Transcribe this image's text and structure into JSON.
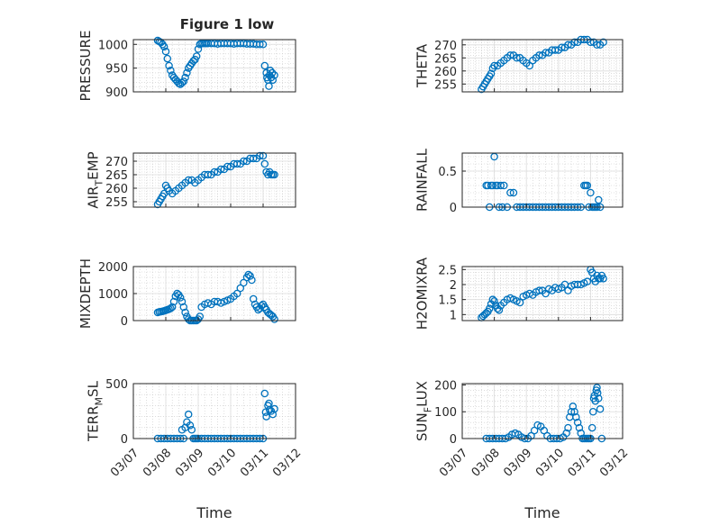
{
  "figure": {
    "title": "Figure 1 low"
  },
  "colors": {
    "marker": "#0072BD",
    "axis": "#262626",
    "grid": "#c8c8c8",
    "background": "#ffffff"
  },
  "chart_data": [
    {
      "type": "scatter",
      "marker": "circle-open",
      "grid": true,
      "title": "Figure 1 low",
      "ylabel": "PRESSURE",
      "xlim": [
        "03/07",
        "03/12"
      ],
      "ylim": [
        900,
        1010
      ],
      "yticks": [
        900,
        950,
        1000
      ],
      "xtick_labels_shown": false,
      "series": [
        {
          "x_days": [
            0.75,
            0.8,
            0.85,
            0.9,
            0.95,
            1.0,
            1.05,
            1.1,
            1.15,
            1.2,
            1.25,
            1.3,
            1.35,
            1.4,
            1.45,
            1.5,
            1.55,
            1.6,
            1.65,
            1.7,
            1.75,
            1.8,
            1.85,
            1.9,
            1.95,
            2.0,
            2.05,
            2.1,
            2.15,
            2.2,
            2.25,
            2.3,
            2.4,
            2.5,
            2.6,
            2.7,
            2.8,
            2.9,
            3.0,
            3.1,
            3.2,
            3.3,
            3.4,
            3.5,
            3.6,
            3.7,
            3.8,
            3.9,
            4.0,
            4.05,
            4.1,
            4.12,
            4.15,
            4.18,
            4.2,
            4.22,
            4.25,
            4.28,
            4.3,
            4.35
          ],
          "y": [
            1008,
            1006,
            1004,
            1000,
            995,
            985,
            970,
            955,
            945,
            935,
            930,
            926,
            922,
            918,
            916,
            919,
            922,
            930,
            940,
            950,
            955,
            960,
            965,
            968,
            975,
            990,
            1000,
            1002,
            1002,
            1002,
            1002,
            1002,
            1002,
            1002,
            1001,
            1002,
            1002,
            1002,
            1002,
            1001,
            1002,
            1002,
            1002,
            1001,
            1001,
            1001,
            1000,
            1000,
            1000,
            955,
            940,
            930,
            925,
            912,
            935,
            945,
            930,
            940,
            925,
            935
          ]
        }
      ]
    },
    {
      "type": "scatter",
      "marker": "circle-open",
      "grid": true,
      "ylabel": "THETA",
      "xlim": [
        "03/07",
        "03/12"
      ],
      "ylim": [
        252,
        272
      ],
      "yticks": [
        255,
        260,
        265,
        270
      ],
      "xtick_labels_shown": false,
      "series": [
        {
          "x_days": [
            0.6,
            0.65,
            0.7,
            0.75,
            0.8,
            0.85,
            0.9,
            0.95,
            1.0,
            1.1,
            1.2,
            1.3,
            1.4,
            1.5,
            1.6,
            1.7,
            1.8,
            1.9,
            2.0,
            2.1,
            2.2,
            2.3,
            2.4,
            2.5,
            2.6,
            2.7,
            2.8,
            2.9,
            3.0,
            3.1,
            3.2,
            3.3,
            3.4,
            3.5,
            3.6,
            3.7,
            3.8,
            3.9,
            4.0,
            4.1,
            4.2,
            4.3,
            4.4
          ],
          "y": [
            253,
            254,
            255,
            256,
            257,
            258,
            259,
            261,
            262,
            262,
            263,
            264,
            265,
            266,
            266,
            265,
            265,
            264,
            263,
            262,
            264,
            265,
            266,
            266,
            267,
            267,
            268,
            268,
            268,
            269,
            269,
            270,
            270,
            271,
            271,
            272,
            272,
            272,
            271,
            271,
            270,
            270,
            271
          ]
        }
      ]
    },
    {
      "type": "scatter",
      "marker": "circle-open",
      "grid": true,
      "ylabel": "AIR_TEMP",
      "ylabel_display": [
        "AIR",
        "T",
        "EMP"
      ],
      "xlim": [
        "03/07",
        "03/12"
      ],
      "ylim": [
        253,
        273
      ],
      "yticks": [
        255,
        260,
        265,
        270
      ],
      "xtick_labels_shown": false,
      "series": [
        {
          "x_days": [
            0.75,
            0.8,
            0.85,
            0.9,
            0.95,
            1.0,
            1.05,
            1.1,
            1.2,
            1.3,
            1.4,
            1.5,
            1.6,
            1.7,
            1.8,
            1.9,
            2.0,
            2.1,
            2.2,
            2.3,
            2.4,
            2.5,
            2.6,
            2.7,
            2.8,
            2.9,
            3.0,
            3.1,
            3.2,
            3.3,
            3.4,
            3.5,
            3.6,
            3.7,
            3.8,
            3.9,
            4.0,
            4.05,
            4.1,
            4.15,
            4.2,
            4.25,
            4.3,
            4.35
          ],
          "y": [
            254,
            255,
            256,
            257,
            258,
            261,
            260,
            259,
            258,
            259,
            260,
            261,
            262,
            263,
            263,
            262,
            263,
            264,
            265,
            265,
            265,
            266,
            266,
            267,
            267,
            268,
            268,
            269,
            269,
            269,
            270,
            270,
            271,
            271,
            271,
            272,
            272,
            269,
            266,
            265,
            266,
            265,
            265,
            265
          ]
        }
      ]
    },
    {
      "type": "scatter",
      "marker": "circle-open",
      "grid": true,
      "ylabel": "RAINFALL",
      "xlim": [
        "03/07",
        "03/12"
      ],
      "ylim": [
        0,
        0.75
      ],
      "yticks": [
        0,
        0.5
      ],
      "xtick_labels_shown": false,
      "series": [
        {
          "x_days": [
            0.75,
            0.8,
            0.85,
            0.9,
            0.95,
            1.0,
            1.05,
            1.1,
            1.15,
            1.2,
            1.25,
            1.3,
            1.4,
            1.5,
            1.6,
            1.7,
            1.8,
            1.9,
            2.0,
            2.1,
            2.2,
            2.3,
            2.4,
            2.5,
            2.6,
            2.7,
            2.8,
            2.9,
            3.0,
            3.1,
            3.2,
            3.3,
            3.4,
            3.5,
            3.6,
            3.7,
            3.8,
            3.85,
            3.9,
            3.95,
            4.0,
            4.05,
            4.1,
            4.15,
            4.2,
            4.25,
            4.3
          ],
          "y": [
            0.3,
            0.3,
            0,
            0.3,
            0.3,
            0.7,
            0.3,
            0.3,
            0,
            0.3,
            0,
            0.3,
            0,
            0.2,
            0.2,
            0,
            0,
            0,
            0,
            0,
            0,
            0,
            0,
            0,
            0,
            0,
            0,
            0,
            0,
            0,
            0,
            0,
            0,
            0,
            0,
            0,
            0.3,
            0.3,
            0.3,
            0,
            0.2,
            0,
            0,
            0,
            0,
            0.1,
            0
          ]
        }
      ]
    },
    {
      "type": "scatter",
      "marker": "circle-open",
      "grid": true,
      "ylabel": "MIXDEPTH",
      "xlim": [
        "03/07",
        "03/12"
      ],
      "ylim": [
        0,
        2000
      ],
      "yticks": [
        0,
        1000,
        2000
      ],
      "xtick_labels_shown": false,
      "series": [
        {
          "x_days": [
            0.75,
            0.8,
            0.85,
            0.9,
            0.95,
            1.0,
            1.05,
            1.1,
            1.15,
            1.2,
            1.25,
            1.3,
            1.35,
            1.4,
            1.45,
            1.5,
            1.55,
            1.6,
            1.65,
            1.7,
            1.75,
            1.8,
            1.85,
            1.9,
            1.95,
            2.0,
            2.05,
            2.1,
            2.2,
            2.3,
            2.4,
            2.5,
            2.6,
            2.7,
            2.8,
            2.9,
            3.0,
            3.1,
            3.2,
            3.3,
            3.4,
            3.5,
            3.55,
            3.6,
            3.65,
            3.7,
            3.75,
            3.8,
            3.85,
            3.9,
            3.95,
            4.0,
            4.05,
            4.1,
            4.15,
            4.2,
            4.25,
            4.3,
            4.35
          ],
          "y": [
            300,
            320,
            330,
            340,
            360,
            380,
            400,
            420,
            450,
            500,
            700,
            900,
            1000,
            950,
            850,
            700,
            500,
            300,
            150,
            50,
            0,
            0,
            0,
            0,
            0,
            50,
            150,
            500,
            600,
            650,
            600,
            700,
            700,
            650,
            700,
            750,
            800,
            900,
            1000,
            1200,
            1400,
            1600,
            1700,
            1650,
            1500,
            800,
            600,
            500,
            400,
            450,
            550,
            600,
            500,
            400,
            300,
            250,
            200,
            150,
            50
          ]
        }
      ]
    },
    {
      "type": "scatter",
      "marker": "circle-open",
      "grid": true,
      "ylabel": "H2OMIXRA",
      "xlim": [
        "03/07",
        "03/12"
      ],
      "ylim": [
        0.8,
        2.6
      ],
      "yticks": [
        1,
        1.5,
        2,
        2.5
      ],
      "xtick_labels_shown": false,
      "series": [
        {
          "x_days": [
            0.6,
            0.65,
            0.7,
            0.75,
            0.8,
            0.85,
            0.9,
            0.95,
            1.0,
            1.05,
            1.1,
            1.15,
            1.2,
            1.3,
            1.4,
            1.5,
            1.6,
            1.7,
            1.8,
            1.9,
            2.0,
            2.1,
            2.2,
            2.3,
            2.4,
            2.5,
            2.6,
            2.7,
            2.8,
            2.9,
            3.0,
            3.1,
            3.2,
            3.3,
            3.4,
            3.5,
            3.6,
            3.7,
            3.8,
            3.9,
            4.0,
            4.05,
            4.1,
            4.15,
            4.2,
            4.25,
            4.3,
            4.35,
            4.4
          ],
          "y": [
            0.9,
            0.95,
            1.0,
            1.05,
            1.1,
            1.2,
            1.35,
            1.5,
            1.45,
            1.3,
            1.2,
            1.15,
            1.3,
            1.4,
            1.5,
            1.55,
            1.5,
            1.45,
            1.4,
            1.6,
            1.65,
            1.7,
            1.65,
            1.75,
            1.8,
            1.8,
            1.7,
            1.85,
            1.8,
            1.9,
            1.85,
            1.9,
            2.0,
            1.8,
            1.95,
            2.0,
            2.0,
            2.0,
            2.05,
            2.1,
            2.5,
            2.4,
            2.2,
            2.1,
            2.3,
            2.2,
            2.2,
            2.3,
            2.2
          ]
        }
      ]
    },
    {
      "type": "scatter",
      "marker": "circle-open",
      "grid": true,
      "ylabel": "TERR_MSL",
      "ylabel_display": [
        "TERR",
        "M",
        "SL"
      ],
      "xlim": [
        "03/07",
        "03/12"
      ],
      "ylim": [
        0,
        500
      ],
      "yticks": [
        0,
        500
      ],
      "xticks": [
        "03/07",
        "03/08",
        "03/09",
        "03/10",
        "03/11",
        "03/12"
      ],
      "xlabel": "Time",
      "series": [
        {
          "x_days": [
            0.75,
            0.85,
            0.95,
            1.05,
            1.15,
            1.25,
            1.35,
            1.45,
            1.5,
            1.55,
            1.6,
            1.65,
            1.7,
            1.75,
            1.8,
            1.85,
            1.9,
            1.95,
            2.0,
            2.1,
            2.2,
            2.3,
            2.4,
            2.5,
            2.6,
            2.7,
            2.8,
            2.9,
            3.0,
            3.1,
            3.2,
            3.3,
            3.4,
            3.5,
            3.6,
            3.7,
            3.8,
            3.9,
            4.0,
            4.05,
            4.08,
            4.1,
            4.15,
            4.18,
            4.2,
            4.25,
            4.3,
            4.35
          ],
          "y": [
            0,
            0,
            0,
            0,
            0,
            0,
            0,
            0,
            80,
            0,
            100,
            150,
            220,
            120,
            80,
            0,
            0,
            0,
            0,
            0,
            0,
            0,
            0,
            0,
            0,
            0,
            0,
            0,
            0,
            0,
            0,
            0,
            0,
            0,
            0,
            0,
            0,
            0,
            0,
            410,
            240,
            200,
            300,
            320,
            260,
            250,
            220,
            270
          ]
        }
      ]
    },
    {
      "type": "scatter",
      "marker": "circle-open",
      "grid": true,
      "ylabel": "SUN_FLUX",
      "ylabel_display": [
        "SUN",
        "F",
        "LUX"
      ],
      "xlim": [
        "03/07",
        "03/12"
      ],
      "ylim": [
        0,
        205
      ],
      "yticks": [
        0,
        100,
        200
      ],
      "xticks": [
        "03/07",
        "03/08",
        "03/09",
        "03/10",
        "03/11",
        "03/12"
      ],
      "xlabel": "Time",
      "series": [
        {
          "x_days": [
            0.75,
            0.85,
            0.95,
            1.05,
            1.15,
            1.25,
            1.35,
            1.45,
            1.55,
            1.65,
            1.75,
            1.85,
            1.95,
            2.05,
            2.15,
            2.25,
            2.35,
            2.45,
            2.55,
            2.65,
            2.75,
            2.85,
            2.95,
            3.05,
            3.15,
            3.25,
            3.3,
            3.35,
            3.4,
            3.45,
            3.5,
            3.55,
            3.6,
            3.65,
            3.7,
            3.75,
            3.8,
            3.85,
            3.9,
            3.95,
            4.0,
            4.05,
            4.08,
            4.1,
            4.12,
            4.15,
            4.18,
            4.2,
            4.22,
            4.25,
            4.3,
            4.35
          ],
          "y": [
            0,
            0,
            0,
            0,
            0,
            0,
            0,
            5,
            15,
            20,
            15,
            5,
            0,
            0,
            10,
            30,
            50,
            45,
            30,
            10,
            0,
            0,
            0,
            0,
            5,
            20,
            40,
            80,
            100,
            120,
            100,
            80,
            60,
            40,
            20,
            0,
            0,
            0,
            0,
            0,
            0,
            40,
            100,
            150,
            160,
            140,
            180,
            190,
            170,
            150,
            110,
            0
          ]
        }
      ]
    }
  ]
}
